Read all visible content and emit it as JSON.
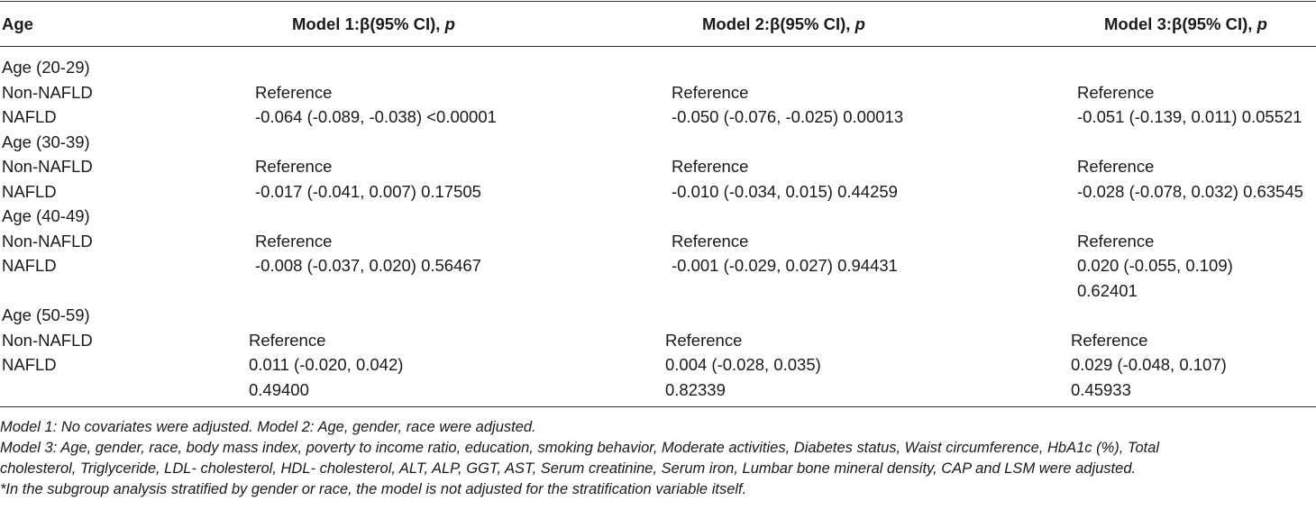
{
  "header": {
    "age": "Age",
    "model1": "Model 1:β(95% CI), ",
    "model2": "Model 2:β(95% CI), ",
    "model3": "Model 3:β(95% CI), ",
    "p": "p"
  },
  "groups": [
    {
      "label": "Age (20-29)",
      "rows": [
        {
          "label": "Non-NAFLD",
          "m1": [
            "Reference"
          ],
          "m2": [
            "Reference"
          ],
          "m3": [
            "Reference"
          ]
        },
        {
          "label": "NAFLD",
          "m1": [
            "-0.064 (-0.089, -0.038) <0.00001"
          ],
          "m2": [
            "-0.050 (-0.076, -0.025) 0.00013"
          ],
          "m3": [
            "-0.051 (-0.139, 0.011) 0.05521"
          ]
        }
      ]
    },
    {
      "label": "Age (30-39)",
      "rows": [
        {
          "label": "Non-NAFLD",
          "m1": [
            "Reference"
          ],
          "m2": [
            "Reference"
          ],
          "m3": [
            "Reference"
          ]
        },
        {
          "label": "NAFLD",
          "m1": [
            "-0.017 (-0.041, 0.007) 0.17505"
          ],
          "m2": [
            "-0.010 (-0.034, 0.015) 0.44259"
          ],
          "m3": [
            "-0.028 (-0.078, 0.032) 0.63545"
          ]
        }
      ]
    },
    {
      "label": "Age (40-49)",
      "rows": [
        {
          "label": "Non-NAFLD",
          "m1": [
            "Reference"
          ],
          "m2": [
            "Reference"
          ],
          "m3": [
            "Reference"
          ]
        },
        {
          "label": "NAFLD",
          "m1": [
            "-0.008 (-0.037, 0.020) 0.56467"
          ],
          "m2": [
            "-0.001 (-0.029, 0.027) 0.94431"
          ],
          "m3": [
            "0.020 (-0.055, 0.109)",
            "0.62401"
          ]
        }
      ]
    },
    {
      "label": "Age (50-59)",
      "rows": [
        {
          "label": "Non-NAFLD",
          "m1": [
            "Reference"
          ],
          "m2": [
            "Reference"
          ],
          "m3": [
            "Reference"
          ]
        },
        {
          "label": "NAFLD",
          "m1": [
            "0.011 (-0.020, 0.042)",
            "0.49400"
          ],
          "m2": [
            "0.004 (-0.028, 0.035)",
            "0.82339"
          ],
          "m3": [
            "0.029 (-0.048, 0.107)",
            "0.45933"
          ]
        }
      ]
    }
  ],
  "footnotes": [
    "Model 1: No covariates were adjusted. Model 2: Age, gender, race were adjusted.",
    "Model 3: Age, gender, race, body mass index, poverty to income ratio, education, smoking behavior, Moderate activities, Diabetes status, Waist circumference, HbA1c (%), Total",
    "cholesterol, Triglyceride, LDL- cholesterol, HDL- cholesterol, ALT, ALP, GGT, AST, Serum creatinine, Serum iron, Lumbar bone mineral density, CAP and LSM were adjusted.",
    "*In the subgroup analysis stratified by gender or race, the model is not adjusted for the stratification variable itself."
  ]
}
